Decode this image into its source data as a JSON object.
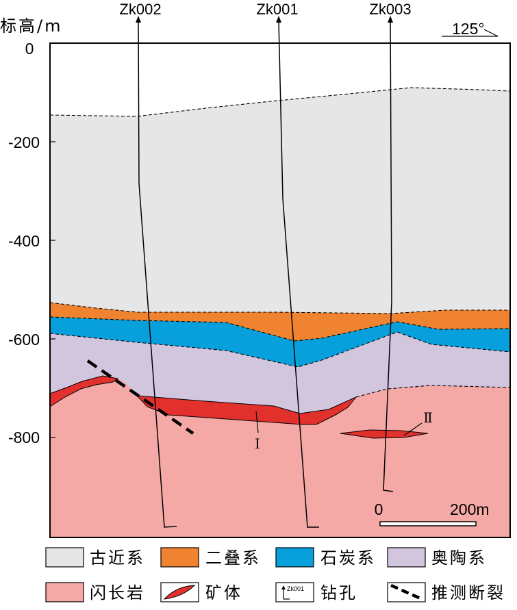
{
  "figure": {
    "y_axis_title": "标高/m",
    "y_ticks": [
      "0",
      "-200",
      "-400",
      "-600",
      "-800"
    ],
    "orientation_label": "125°"
  },
  "drill_holes": [
    {
      "name": "Zk002"
    },
    {
      "name": "Zk001"
    },
    {
      "name": "Zk003"
    }
  ],
  "ore_bodies": [
    {
      "label": "Ⅰ"
    },
    {
      "label": "Ⅱ"
    }
  ],
  "scale_bar": {
    "start_label": "0",
    "end_label": "200m"
  },
  "legend": [
    {
      "label": "古近系",
      "color": "#e6e6e6"
    },
    {
      "label": "二叠系",
      "color": "#f0832f"
    },
    {
      "label": "石炭系",
      "color": "#08a0dc"
    },
    {
      "label": "奥陶系",
      "color": "#d2c6df"
    },
    {
      "label": "闪长岩",
      "color": "#f5a9a7"
    },
    {
      "label": "矿体",
      "color": "#e2302d",
      "icon": "ore-lens-icon"
    },
    {
      "label": "钻孔",
      "icon": "drill-hole-icon",
      "symbol_text": "Zk001"
    },
    {
      "label": "推测断裂",
      "icon": "fault-line-icon"
    }
  ]
}
